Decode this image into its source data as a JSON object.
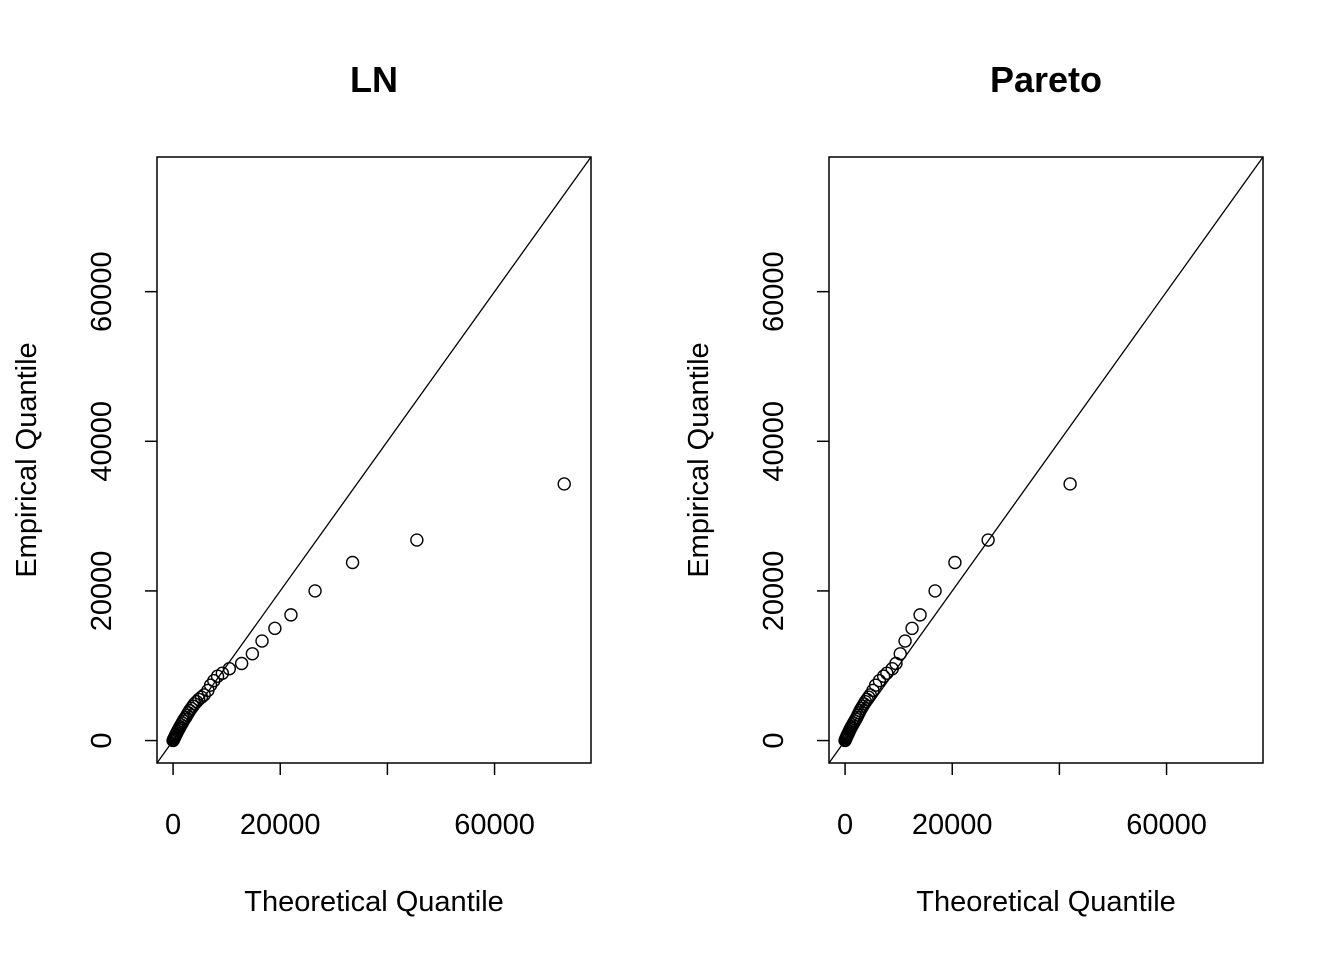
{
  "chart_data": [
    {
      "type": "scatter",
      "title": "LN",
      "xlabel": "Theoretical Quantile",
      "ylabel": "Empirical Quantile",
      "xlim": [
        -3000,
        78000
      ],
      "ylim": [
        -3000,
        78000
      ],
      "xticks": [
        0,
        20000,
        40000,
        60000
      ],
      "xtick_labels": [
        "0",
        "20000",
        "",
        "60000"
      ],
      "yticks": [
        0,
        20000,
        40000,
        60000
      ],
      "ytick_labels": [
        "0",
        "20000",
        "40000",
        "60000"
      ],
      "reference_line": {
        "slope": 1,
        "intercept": 0
      },
      "points": [
        [
          0,
          0
        ],
        [
          100,
          150
        ],
        [
          200,
          300
        ],
        [
          300,
          450
        ],
        [
          400,
          600
        ],
        [
          500,
          750
        ],
        [
          600,
          900
        ],
        [
          700,
          1050
        ],
        [
          850,
          1250
        ],
        [
          1000,
          1450
        ],
        [
          1150,
          1650
        ],
        [
          1300,
          1850
        ],
        [
          1500,
          2100
        ],
        [
          1700,
          2350
        ],
        [
          1900,
          2600
        ],
        [
          2100,
          2850
        ],
        [
          2350,
          3100
        ],
        [
          2600,
          3400
        ],
        [
          2850,
          3700
        ],
        [
          3100,
          4000
        ],
        [
          3400,
          4300
        ],
        [
          3700,
          4600
        ],
        [
          4000,
          4900
        ],
        [
          4400,
          5200
        ],
        [
          4800,
          5500
        ],
        [
          5300,
          5800
        ],
        [
          5800,
          6100
        ],
        [
          6500,
          6700
        ],
        [
          7000,
          7400
        ],
        [
          7600,
          8000
        ],
        [
          8300,
          8600
        ],
        [
          9200,
          9000
        ],
        [
          10500,
          9600
        ],
        [
          12800,
          10300
        ],
        [
          14800,
          11600
        ],
        [
          16600,
          13300
        ],
        [
          19000,
          15000
        ],
        [
          22000,
          16800
        ],
        [
          26500,
          20000
        ],
        [
          33500,
          23800
        ],
        [
          45500,
          26800
        ],
        [
          73000,
          34300
        ]
      ]
    },
    {
      "type": "scatter",
      "title": "Pareto",
      "xlabel": "Theoretical Quantile",
      "ylabel": "Empirical Quantile",
      "xlim": [
        -3000,
        78000
      ],
      "ylim": [
        -3000,
        78000
      ],
      "xticks": [
        0,
        20000,
        40000,
        60000
      ],
      "xtick_labels": [
        "0",
        "20000",
        "",
        "60000"
      ],
      "yticks": [
        0,
        20000,
        40000,
        60000
      ],
      "ytick_labels": [
        "0",
        "20000",
        "40000",
        "60000"
      ],
      "reference_line": {
        "slope": 1,
        "intercept": 0
      },
      "points": [
        [
          0,
          0
        ],
        [
          80,
          150
        ],
        [
          170,
          300
        ],
        [
          260,
          450
        ],
        [
          350,
          600
        ],
        [
          450,
          750
        ],
        [
          550,
          900
        ],
        [
          650,
          1050
        ],
        [
          780,
          1250
        ],
        [
          900,
          1450
        ],
        [
          1050,
          1650
        ],
        [
          1200,
          1850
        ],
        [
          1400,
          2100
        ],
        [
          1600,
          2350
        ],
        [
          1800,
          2600
        ],
        [
          2000,
          2850
        ],
        [
          2200,
          3100
        ],
        [
          2400,
          3400
        ],
        [
          2600,
          3700
        ],
        [
          2800,
          4000
        ],
        [
          3050,
          4300
        ],
        [
          3300,
          4600
        ],
        [
          3550,
          4900
        ],
        [
          3800,
          5200
        ],
        [
          4100,
          5500
        ],
        [
          4400,
          5800
        ],
        [
          4700,
          6100
        ],
        [
          5200,
          6700
        ],
        [
          5700,
          7400
        ],
        [
          6400,
          8000
        ],
        [
          7200,
          8600
        ],
        [
          7800,
          9000
        ],
        [
          8800,
          9600
        ],
        [
          9500,
          10300
        ],
        [
          10300,
          11600
        ],
        [
          11200,
          13300
        ],
        [
          12500,
          15000
        ],
        [
          14000,
          16800
        ],
        [
          16800,
          20000
        ],
        [
          20500,
          23800
        ],
        [
          26700,
          26800
        ],
        [
          42000,
          34300
        ]
      ]
    }
  ]
}
